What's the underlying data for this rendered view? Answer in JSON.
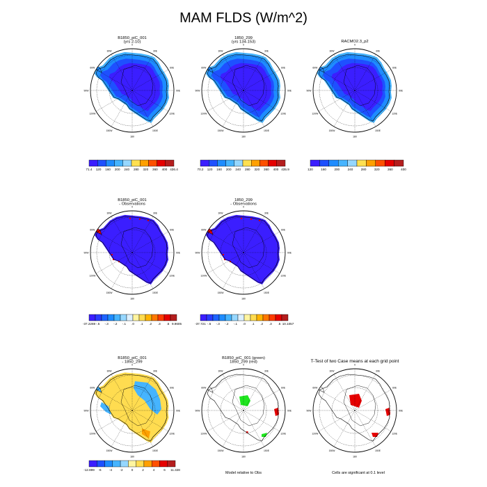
{
  "figure": {
    "title": "MAM FLDS (W/m^2)"
  },
  "panels": [
    {
      "id": "p1",
      "title": [
        "B1850_piC_001",
        "(yrs 2-10)"
      ],
      "fill": "obs_abs"
    },
    {
      "id": "p2",
      "title": [
        "1850_299",
        "(yrs 134-153)"
      ],
      "fill": "obs_abs"
    },
    {
      "id": "p3",
      "title": [
        "RACMO2.3_p2"
      ],
      "fill": "obs_abs"
    },
    {
      "id": "p4",
      "title": [
        "B1850_piC_001",
        "- Observations"
      ],
      "fill": "bias"
    },
    {
      "id": "p5",
      "title": [
        "1850_299",
        "- Observations"
      ],
      "fill": "bias"
    },
    {
      "id": "p6",
      "title": [
        "B1850_piC_001",
        "- 1850_299"
      ],
      "fill": "diff"
    },
    {
      "id": "p7",
      "title": [
        "B1850_piC_001 (green)",
        "1850_299 (red)"
      ],
      "fill": "sig_pair"
    },
    {
      "id": "p8",
      "title": [
        "T-Test of two Case means at each grid point"
      ],
      "fill": "sig_single"
    }
  ],
  "meridian_labels": [
    "0",
    "30E",
    "60E",
    "90E",
    "120E",
    "150E",
    "180",
    "150W",
    "120W",
    "90W",
    "60W",
    "30W"
  ],
  "colorbars": [
    {
      "id": "cb1",
      "colors": [
        "#3b1eff",
        "#1e50ff",
        "#1e8cff",
        "#46b4ff",
        "#96d7ff",
        "#ffe050",
        "#ffa000",
        "#ff5000",
        "#e60000",
        "#b41e1e"
      ],
      "labels": [
        "71.4",
        "120",
        "160",
        "200",
        "240",
        "280",
        "320",
        "360",
        "400",
        "436.4"
      ]
    },
    {
      "id": "cb2",
      "colors": [
        "#3b1eff",
        "#1e50ff",
        "#1e8cff",
        "#46b4ff",
        "#96d7ff",
        "#ffe050",
        "#ffa000",
        "#ff5000",
        "#e60000",
        "#b41e1e"
      ],
      "labels": [
        "70.2",
        "120",
        "160",
        "200",
        "240",
        "280",
        "320",
        "360",
        "400",
        "435.9"
      ]
    },
    {
      "id": "cb3",
      "colors": [
        "#3b1eff",
        "#1e50ff",
        "#1e8cff",
        "#46b4ff",
        "#96d7ff",
        "#ffe050",
        "#ffa000",
        "#ff5000",
        "#e60000",
        "#b41e1e"
      ],
      "labels": [
        "120",
        "160",
        "200",
        "240",
        "280",
        "320",
        "360",
        "400"
      ]
    },
    {
      "id": "cb4",
      "colors": [
        "#3b1eff",
        "#2a3cff",
        "#1e64ff",
        "#1e8cff",
        "#46b4ff",
        "#96d7ff",
        "#dcf0ff",
        "#fff5a0",
        "#ffdc50",
        "#ffb400",
        "#ff7800",
        "#ff3c00",
        "#e60000",
        "#b41e1e"
      ],
      "labels": [
        "-37.2269",
        "-.5",
        "-.3",
        "-.2",
        "-.1",
        ".0",
        ".1",
        ".2",
        ".3",
        ".5",
        "9.9605"
      ]
    },
    {
      "id": "cb5",
      "colors": [
        "#3b1eff",
        "#2a3cff",
        "#1e64ff",
        "#1e8cff",
        "#46b4ff",
        "#96d7ff",
        "#dcf0ff",
        "#fff5a0",
        "#ffdc50",
        "#ffb400",
        "#ff7800",
        "#ff3c00",
        "#e60000",
        "#b41e1e"
      ],
      "labels": [
        "-37.721",
        "-.5",
        "-.3",
        "-.2",
        "-.1",
        ".0",
        ".1",
        ".2",
        ".3",
        ".5",
        "10.1057"
      ]
    },
    {
      "id": "cb6",
      "colors": [
        "#3b1eff",
        "#1e50ff",
        "#1e8cff",
        "#46b4ff",
        "#96d7ff",
        "#fff5a0",
        "#ffdc50",
        "#ffa000",
        "#ff5000",
        "#e60000",
        "#b41e1e"
      ],
      "labels": [
        "-12.899",
        "-6",
        "-4",
        "-2",
        "0",
        "2",
        "4",
        "6",
        "11.328"
      ]
    }
  ],
  "notes": {
    "model_relative": "Model relative to Obs",
    "significance": "Cells are significant at 0.1 level"
  },
  "colors": {
    "obs_abs_interior": "#3b1eff",
    "obs_abs_mid": "#1e50ff",
    "obs_abs_edge": "#1e8cff",
    "obs_abs_rim": "#46b4ff",
    "bias_fill": "#3b1eff",
    "bias_hot": "#e60000",
    "diff_pos": "#ffdc50",
    "diff_neg": "#46b4ff",
    "sig_green": "#1ee61e",
    "sig_red": "#e60000"
  }
}
